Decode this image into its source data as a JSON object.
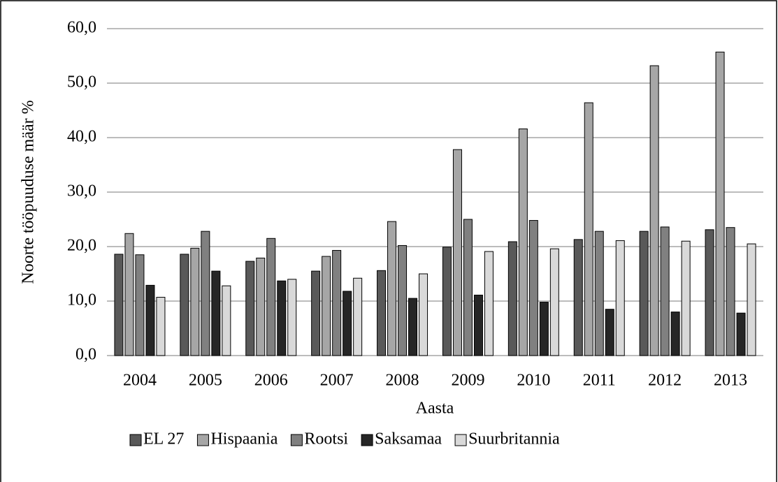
{
  "chart_data": {
    "type": "bar",
    "y_label": "Noorte tööpuuduse määr %",
    "x_label": "Aasta",
    "categories": [
      "2004",
      "2005",
      "2006",
      "2007",
      "2008",
      "2009",
      "2010",
      "2011",
      "2012",
      "2013"
    ],
    "series": [
      {
        "name": "EL 27",
        "color": "#595959",
        "values": [
          18.6,
          18.6,
          17.3,
          15.5,
          15.6,
          19.9,
          20.9,
          21.3,
          22.8,
          23.1
        ]
      },
      {
        "name": "Hispaania",
        "color": "#a6a6a6",
        "values": [
          22.4,
          19.7,
          17.9,
          18.2,
          24.6,
          37.8,
          41.6,
          46.4,
          53.2,
          55.7
        ]
      },
      {
        "name": "Rootsi",
        "color": "#808080",
        "values": [
          18.5,
          22.8,
          21.5,
          19.3,
          20.2,
          25.0,
          24.8,
          22.8,
          23.6,
          23.5
        ]
      },
      {
        "name": "Saksamaa",
        "color": "#262626",
        "values": [
          12.9,
          15.5,
          13.7,
          11.8,
          10.5,
          11.1,
          9.8,
          8.5,
          8.0,
          7.8
        ]
      },
      {
        "name": "Suurbritannia",
        "color": "#d9d9d9",
        "values": [
          10.7,
          12.8,
          14.0,
          14.2,
          15.0,
          19.1,
          19.6,
          21.1,
          21.0,
          20.5
        ]
      }
    ],
    "ylim": [
      0,
      60
    ],
    "yticks": [
      {
        "value": 0,
        "label": "0,0"
      },
      {
        "value": 10,
        "label": "10,0"
      },
      {
        "value": 20,
        "label": "20,0"
      },
      {
        "value": 30,
        "label": "30,0"
      },
      {
        "value": 40,
        "label": "40,0"
      },
      {
        "value": 50,
        "label": "50,0"
      },
      {
        "value": 60,
        "label": "60,0"
      }
    ],
    "grid": true,
    "legend": "bottom"
  }
}
